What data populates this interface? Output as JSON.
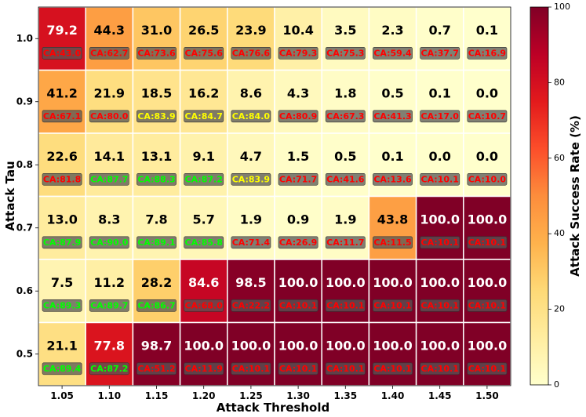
{
  "chart_data": {
    "type": "heatmap",
    "xlabel": "Attack Threshold",
    "ylabel": "Attack Tau",
    "colorbar_label": "Attack Success Rate (%)",
    "x_categories": [
      "1.05",
      "1.10",
      "1.15",
      "1.20",
      "1.25",
      "1.30",
      "1.35",
      "1.40",
      "1.45",
      "1.50"
    ],
    "y_categories": [
      "1.0",
      "0.9",
      "0.8",
      "0.7",
      "0.6",
      "0.5"
    ],
    "colorbar_range": [
      0,
      100
    ],
    "colorbar_ticks": [
      "0",
      "20",
      "40",
      "60",
      "80",
      "100"
    ],
    "colormap": [
      "#ffffcc",
      "#ffeda0",
      "#fed976",
      "#feb24c",
      "#fd8d3c",
      "#fc4e2a",
      "#e31a1c",
      "#bd0026",
      "#800026"
    ],
    "values": [
      [
        79.2,
        44.3,
        31.0,
        26.5,
        23.9,
        10.4,
        3.5,
        2.3,
        0.7,
        0.1
      ],
      [
        41.2,
        21.9,
        18.5,
        16.2,
        8.6,
        4.3,
        1.8,
        0.5,
        0.1,
        0.0
      ],
      [
        22.6,
        14.1,
        13.1,
        9.1,
        4.7,
        1.5,
        0.5,
        0.1,
        0.0,
        0.0
      ],
      [
        13.0,
        8.3,
        7.8,
        5.7,
        1.9,
        0.9,
        1.9,
        43.8,
        100.0,
        100.0
      ],
      [
        7.5,
        11.2,
        28.2,
        84.6,
        98.5,
        100.0,
        100.0,
        100.0,
        100.0,
        100.0
      ],
      [
        21.1,
        77.8,
        98.7,
        100.0,
        100.0,
        100.0,
        100.0,
        100.0,
        100.0,
        100.0
      ]
    ],
    "ca_labels": [
      [
        "CA:43.0",
        "CA:62.7",
        "CA:73.6",
        "CA:75.6",
        "CA:76.6",
        "CA:79.3",
        "CA:75.3",
        "CA:59.4",
        "CA:37.7",
        "CA:16.9"
      ],
      [
        "CA:67.1",
        "CA:80.0",
        "CA:83.9",
        "CA:84.7",
        "CA:84.0",
        "CA:80.9",
        "CA:67.3",
        "CA:41.3",
        "CA:17.0",
        "CA:10.7"
      ],
      [
        "CA:81.8",
        "CA:87.7",
        "CA:88.3",
        "CA:87.2",
        "CA:83.9",
        "CA:71.7",
        "CA:41.6",
        "CA:13.6",
        "CA:10.1",
        "CA:10.0"
      ],
      [
        "CA:87.9",
        "CA:90.0",
        "CA:89.1",
        "CA:85.8",
        "CA:71.4",
        "CA:26.9",
        "CA:11.7",
        "CA:11.5",
        "CA:10.1",
        "CA:10.1"
      ],
      [
        "CA:89.3",
        "CA:89.7",
        "CA:86.7",
        "CA:68.0",
        "CA:22.2",
        "CA:10.1",
        "CA:10.1",
        "CA:10.1",
        "CA:10.1",
        "CA:10.1"
      ],
      [
        "CA:89.4",
        "CA:87.2",
        "CA:51.2",
        "CA:11.9",
        "CA:10.1",
        "CA:10.1",
        "CA:10.1",
        "CA:10.1",
        "CA:10.1",
        "CA:10.1"
      ]
    ],
    "ca_text_colors": [
      [
        "#ff0000",
        "#ff0000",
        "#ff0000",
        "#ff0000",
        "#ff0000",
        "#ff0000",
        "#ff0000",
        "#ff0000",
        "#ff0000",
        "#ff0000"
      ],
      [
        "#ff0000",
        "#ff0000",
        "#ffff00",
        "#ffff00",
        "#ffff00",
        "#ff0000",
        "#ff0000",
        "#ff0000",
        "#ff0000",
        "#ff0000"
      ],
      [
        "#ff0000",
        "#00ff00",
        "#00ff00",
        "#00ff00",
        "#ffff00",
        "#ff0000",
        "#ff0000",
        "#ff0000",
        "#ff0000",
        "#ff0000"
      ],
      [
        "#00ff00",
        "#00ff00",
        "#00ff00",
        "#00ff00",
        "#ff0000",
        "#ff0000",
        "#ff0000",
        "#ff0000",
        "#ff0000",
        "#ff0000"
      ],
      [
        "#00ff00",
        "#00ff00",
        "#00ff00",
        "#ff0000",
        "#ff0000",
        "#ff0000",
        "#ff0000",
        "#ff0000",
        "#ff0000",
        "#ff0000"
      ],
      [
        "#00ff00",
        "#00ff00",
        "#ff0000",
        "#ff0000",
        "#ff0000",
        "#ff0000",
        "#ff0000",
        "#ff0000",
        "#ff0000",
        "#ff0000"
      ]
    ],
    "ca_box_color": "#555555",
    "grid_line_color": "#ffffff"
  }
}
